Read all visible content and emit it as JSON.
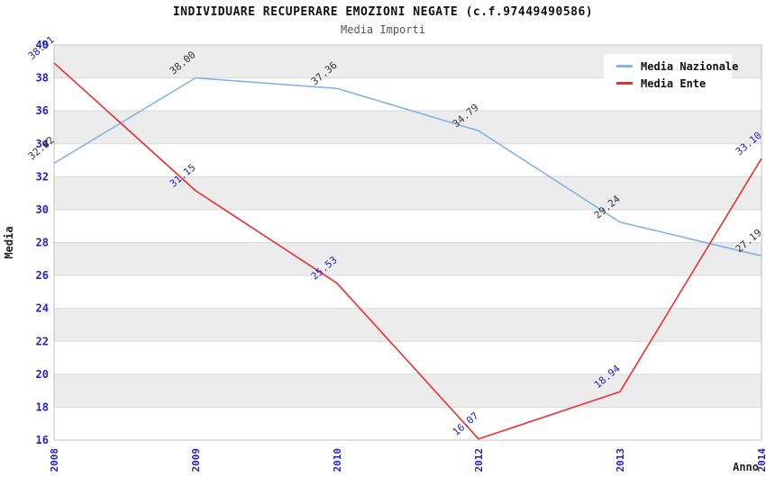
{
  "header": {
    "title": "INDIVIDUARE RECUPERARE EMOZIONI NEGATE (c.f.97449490586)",
    "subtitle": "Media Importi"
  },
  "legend": {
    "items": [
      {
        "label": "Media Nazionale"
      },
      {
        "label": "Media Ente"
      }
    ]
  },
  "chart_data": {
    "type": "line",
    "title": "INDIVIDUARE RECUPERARE EMOZIONI NEGATE (c.f.97449490586)",
    "subtitle": "Media Importi",
    "xlabel": "Anno",
    "ylabel": "Media",
    "x_categories": [
      "2008",
      "2009",
      "2010",
      "2012",
      "2013",
      "2014"
    ],
    "series": [
      {
        "name": "Media Nazionale",
        "color": "#85b3e6",
        "label_color": "#333333",
        "values": [
          32.82,
          38.0,
          37.36,
          34.79,
          29.24,
          27.19
        ]
      },
      {
        "name": "Media Ente",
        "color": "#e83030",
        "label_color": "#2222cc",
        "values": [
          38.91,
          31.15,
          25.53,
          16.07,
          18.94,
          33.1
        ]
      }
    ],
    "ylim": [
      16,
      40
    ],
    "ytick_step": 2,
    "grid": true,
    "banded_background": true,
    "band_color": "#ececec",
    "grid_color": "#d9d9d9",
    "border_color": "#c0c0c0",
    "tick_label_color": "#2222cc",
    "legend_position": "top-right"
  }
}
